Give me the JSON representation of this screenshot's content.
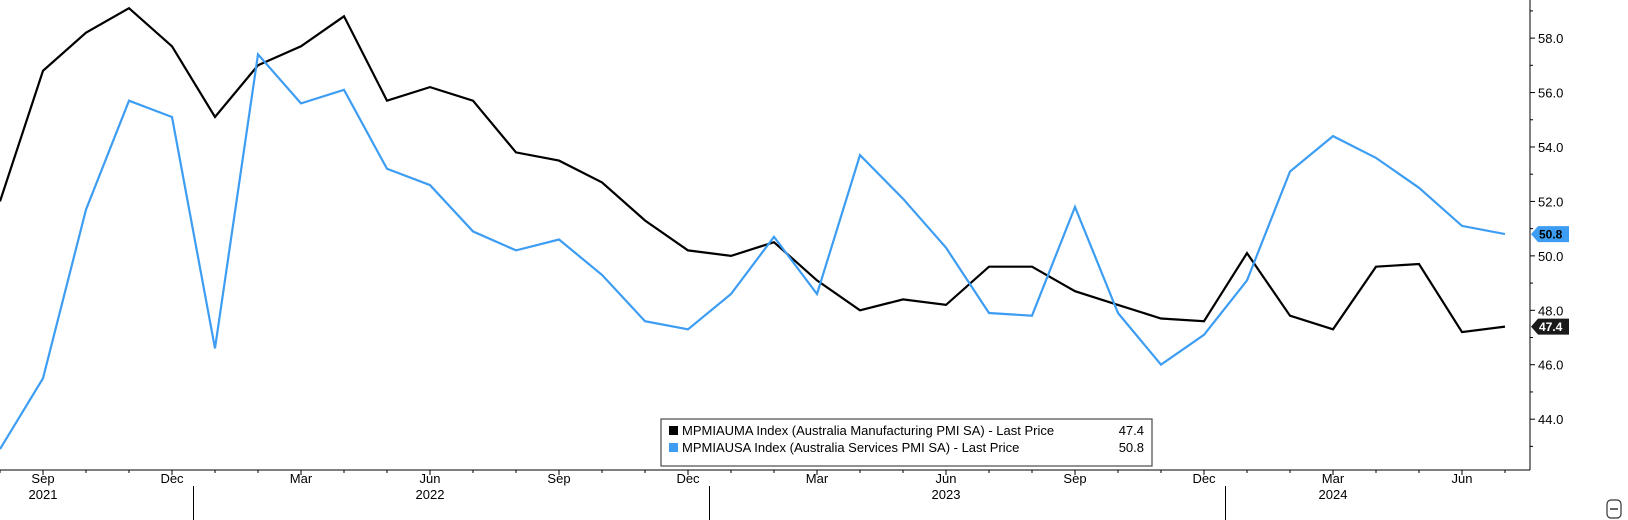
{
  "chart_data": {
    "type": "line",
    "x": [
      "2021-08",
      "2021-09",
      "2021-10",
      "2021-11",
      "2021-12",
      "2022-01",
      "2022-02",
      "2022-03",
      "2022-04",
      "2022-05",
      "2022-06",
      "2022-07",
      "2022-08",
      "2022-09",
      "2022-10",
      "2022-11",
      "2022-12",
      "2023-01",
      "2023-02",
      "2023-03",
      "2023-04",
      "2023-05",
      "2023-06",
      "2023-07",
      "2023-08",
      "2023-09",
      "2023-10",
      "2023-11",
      "2023-12",
      "2024-01",
      "2024-02",
      "2024-03",
      "2024-04",
      "2024-05",
      "2024-06",
      "2024-07"
    ],
    "series": [
      {
        "name": "MPMIAUMA Index (Australia Manufacturing PMI SA) - Last Price",
        "color": "#000000",
        "last_value": "47.4",
        "values": [
          52.0,
          56.8,
          58.2,
          59.1,
          57.7,
          55.1,
          57.0,
          57.7,
          58.8,
          55.7,
          56.2,
          55.7,
          53.8,
          53.5,
          52.7,
          51.3,
          50.2,
          50.0,
          50.5,
          49.1,
          48.0,
          48.4,
          48.2,
          49.6,
          49.6,
          48.7,
          48.2,
          47.7,
          47.6,
          50.1,
          47.8,
          47.3,
          49.6,
          49.7,
          47.2,
          47.4
        ]
      },
      {
        "name": "MPMIAUSA Index (Australia Services PMI SA) - Last Price",
        "color": "#3d9df2",
        "last_value": "50.8",
        "values": [
          42.9,
          45.5,
          51.7,
          55.7,
          55.1,
          46.6,
          57.4,
          55.6,
          56.1,
          53.2,
          52.6,
          50.9,
          50.2,
          50.6,
          49.3,
          47.6,
          47.3,
          48.6,
          50.7,
          48.6,
          53.7,
          52.1,
          50.3,
          47.9,
          47.8,
          51.8,
          47.9,
          46.0,
          47.1,
          49.1,
          53.1,
          54.4,
          53.6,
          52.5,
          51.1,
          50.8
        ]
      }
    ],
    "ylim": [
      42.5,
      59.4
    ],
    "yticks": [
      "44.0",
      "46.0",
      "48.0",
      "50.0",
      "52.0",
      "54.0",
      "56.0",
      "58.0"
    ],
    "month_ticks": [
      {
        "x": "2021-09",
        "label": "Sep"
      },
      {
        "x": "2021-12",
        "label": "Dec"
      },
      {
        "x": "2022-03",
        "label": "Mar"
      },
      {
        "x": "2022-06",
        "label": "Jun"
      },
      {
        "x": "2022-09",
        "label": "Sep"
      },
      {
        "x": "2022-12",
        "label": "Dec"
      },
      {
        "x": "2023-03",
        "label": "Mar"
      },
      {
        "x": "2023-06",
        "label": "Jun"
      },
      {
        "x": "2023-09",
        "label": "Sep"
      },
      {
        "x": "2023-12",
        "label": "Dec"
      },
      {
        "x": "2024-03",
        "label": "Mar"
      },
      {
        "x": "2024-06",
        "label": "Jun"
      }
    ],
    "year_labels": [
      {
        "label": "2021",
        "x_center": "2021-09"
      },
      {
        "label": "2022",
        "x_center": "2022-06"
      },
      {
        "label": "2023",
        "x_center": "2023-06"
      },
      {
        "label": "2024",
        "x_center": "2024-03"
      }
    ],
    "year_dividers": [
      "2021-12",
      "2022-12",
      "2023-12"
    ],
    "legend": {
      "position": "bottom-center",
      "entries": [
        {
          "label": "MPMIAUMA Index (Australia Manufacturing PMI SA) - Last Price",
          "value": "47.4",
          "color": "#000000"
        },
        {
          "label": "MPMIAUSA Index (Australia Services PMI SA) - Last Price",
          "value": "50.8",
          "color": "#3d9df2"
        }
      ]
    },
    "y_axis_side": "right",
    "grid": false
  }
}
